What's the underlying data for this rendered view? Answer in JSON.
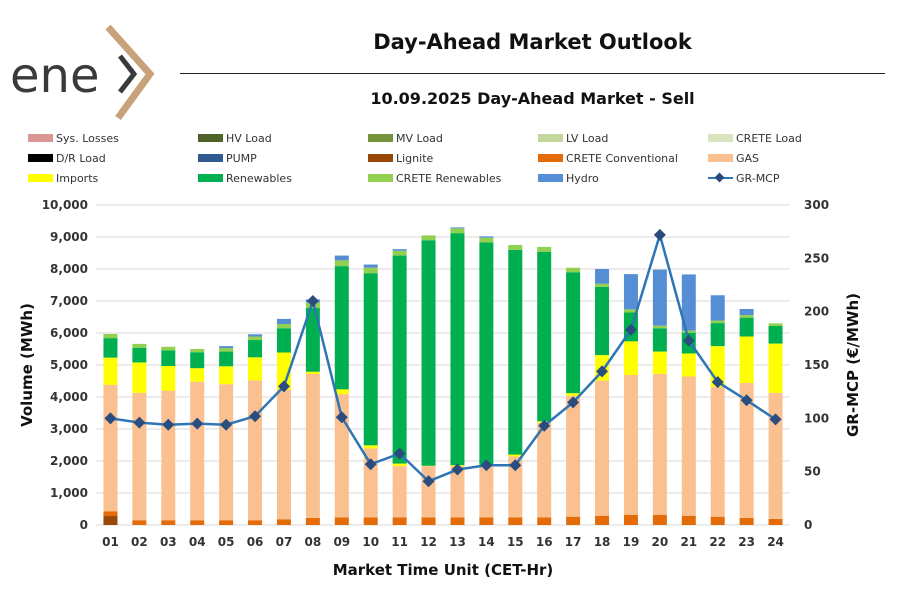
{
  "header": {
    "logo_text": "enex",
    "title": "Day-Ahead Market Outlook",
    "subtitle": "10.09.2025  Day-Ahead Market - Sell"
  },
  "colors": {
    "Sys. Losses": "#d99694",
    "HV Load": "#4f6228",
    "MV Load": "#77933c",
    "LV Load": "#c3d69b",
    "CRETE Load": "#d7e4bd",
    "D/R Load": "#000000",
    "PUMP": "#2f5b8f",
    "Lignite": "#984807",
    "CRETE Conventional": "#e36c09",
    "GAS": "#fac090",
    "Imports": "#ffff00",
    "Renewables": "#00b050",
    "CRETE Renewables": "#92d050",
    "Hydro": "#558ed5",
    "GR-MCP": "#2e75b6",
    "GR-MCP marker": "#2b4c7e",
    "logo_gray": "#3a3a3a",
    "logo_tan": "#c8a27a"
  },
  "chart_data": {
    "type": "bar",
    "stacked": true,
    "title": "10.09.2025  Day-Ahead Market - Sell",
    "xlabel": "Market Time Unit (CET-Hr)",
    "ylabel": "Volume (MWh)",
    "y2label": "GR-MCP (€/MWh)",
    "ylim": [
      0,
      10000
    ],
    "y2lim": [
      0,
      300
    ],
    "yticks": [
      "0",
      "1,000",
      "2,000",
      "3,000",
      "4,000",
      "5,000",
      "6,000",
      "7,000",
      "8,000",
      "9,000",
      "10,000"
    ],
    "y2ticks": [
      "0",
      "50",
      "100",
      "150",
      "200",
      "250",
      "300"
    ],
    "grid": true,
    "legend_position": "top",
    "categories": [
      "01",
      "02",
      "03",
      "04",
      "05",
      "06",
      "07",
      "08",
      "09",
      "10",
      "11",
      "12",
      "13",
      "14",
      "15",
      "16",
      "17",
      "18",
      "19",
      "20",
      "21",
      "22",
      "23",
      "24"
    ],
    "legend": [
      "Sys. Losses",
      "HV Load",
      "MV Load",
      "LV Load",
      "CRETE Load",
      "D/R Load",
      "PUMP",
      "Lignite",
      "CRETE Conventional",
      "GAS",
      "Imports",
      "Renewables",
      "CRETE Renewables",
      "Hydro",
      "GR-MCP"
    ],
    "series": [
      {
        "name": "Lignite",
        "values": [
          280,
          0,
          0,
          0,
          0,
          0,
          0,
          0,
          0,
          0,
          0,
          0,
          0,
          0,
          0,
          0,
          0,
          0,
          0,
          0,
          0,
          0,
          0,
          0
        ]
      },
      {
        "name": "CRETE Conventional",
        "values": [
          150,
          150,
          150,
          150,
          150,
          150,
          180,
          220,
          240,
          240,
          240,
          240,
          240,
          240,
          240,
          240,
          260,
          290,
          320,
          320,
          290,
          260,
          220,
          190
        ]
      },
      {
        "name": "GAS",
        "values": [
          3950,
          3980,
          4050,
          4330,
          4250,
          4370,
          4050,
          4500,
          3850,
          2150,
          1600,
          1600,
          1600,
          1600,
          1900,
          2950,
          3780,
          4220,
          4370,
          4400,
          4350,
          4050,
          4220,
          3940
        ]
      },
      {
        "name": "Imports",
        "values": [
          850,
          950,
          770,
          420,
          560,
          720,
          1160,
          70,
          150,
          100,
          80,
          10,
          30,
          40,
          60,
          50,
          80,
          800,
          1050,
          700,
          720,
          1280,
          1450,
          1540
        ]
      },
      {
        "name": "Renewables",
        "values": [
          610,
          460,
          490,
          500,
          460,
          540,
          760,
          1990,
          3850,
          5380,
          6500,
          7050,
          7250,
          6950,
          6400,
          5300,
          3780,
          2130,
          900,
          730,
          650,
          720,
          590,
          550
        ]
      },
      {
        "name": "CRETE Renewables",
        "values": [
          130,
          120,
          110,
          100,
          110,
          110,
          130,
          170,
          180,
          170,
          150,
          150,
          150,
          150,
          150,
          150,
          140,
          100,
          100,
          80,
          70,
          80,
          80,
          80
        ]
      },
      {
        "name": "Hydro",
        "values": [
          0,
          0,
          0,
          0,
          60,
          70,
          160,
          100,
          150,
          100,
          50,
          0,
          30,
          40,
          0,
          0,
          0,
          460,
          1100,
          1750,
          1750,
          790,
          190,
          0
        ]
      }
    ],
    "line_series": {
      "name": "GR-MCP",
      "axis": "y2",
      "values": [
        100,
        96,
        94,
        95,
        94,
        102,
        130,
        210,
        101,
        57,
        67,
        41,
        52,
        56,
        56,
        93,
        115,
        144,
        183,
        272,
        173,
        134,
        117,
        99
      ]
    }
  }
}
